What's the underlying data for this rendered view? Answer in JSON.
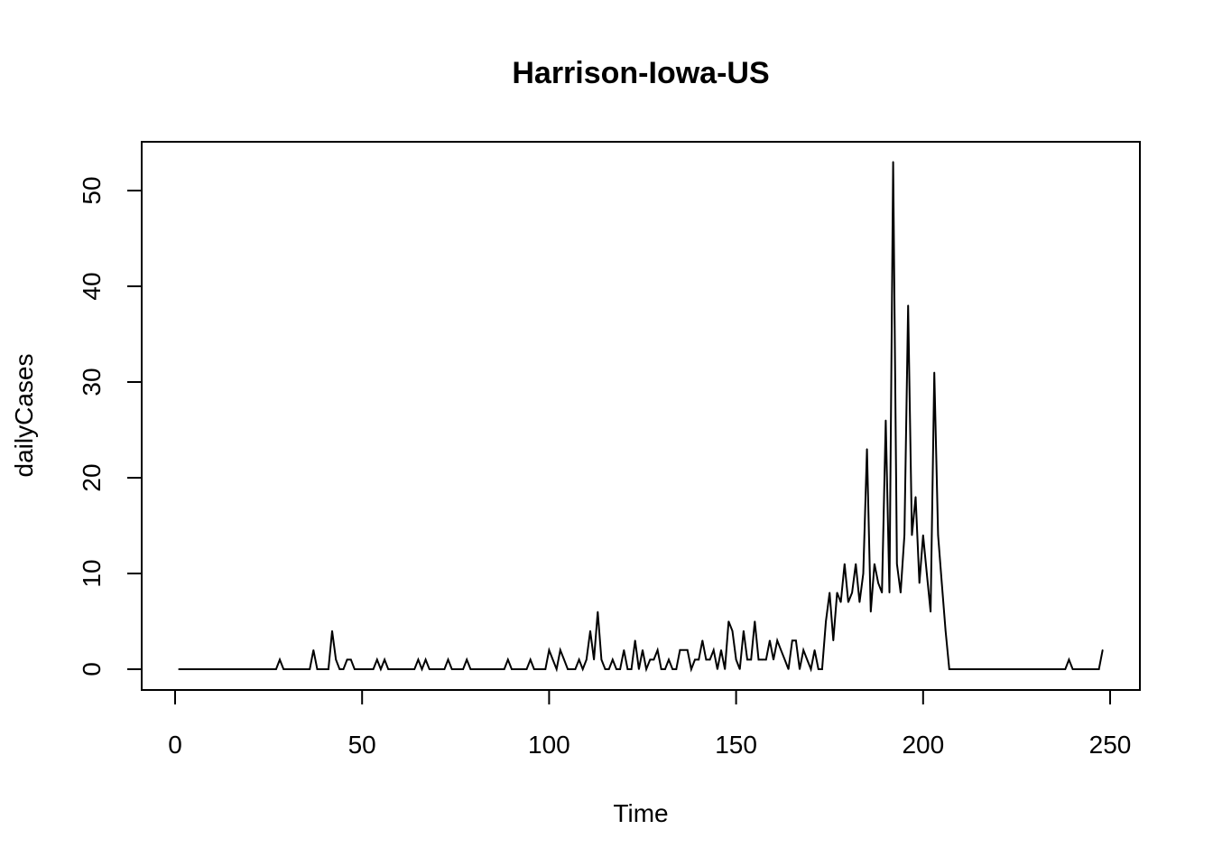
{
  "chart_data": {
    "type": "line",
    "title": "Harrison-Iowa-US",
    "xlabel": "Time",
    "ylabel": "dailyCases",
    "xlim": [
      1,
      248
    ],
    "ylim": [
      0,
      53
    ],
    "x_ticks": [
      0,
      50,
      100,
      150,
      200,
      250
    ],
    "y_ticks": [
      0,
      10,
      20,
      30,
      40,
      50
    ],
    "grid": false,
    "series": [
      {
        "color": "#000000",
        "x": [
          1,
          27,
          28,
          29,
          36,
          37,
          38,
          41,
          42,
          43,
          44,
          45,
          46,
          47,
          48,
          49,
          53,
          54,
          55,
          56,
          57,
          64,
          65,
          66,
          67,
          68,
          72,
          73,
          74,
          77,
          78,
          79,
          88,
          89,
          90,
          94,
          95,
          96,
          99,
          100,
          101,
          102,
          103,
          104,
          105,
          106,
          107,
          108,
          109,
          110,
          111,
          112,
          113,
          114,
          115,
          116,
          117,
          118,
          119,
          120,
          121,
          122,
          123,
          124,
          125,
          126,
          127,
          128,
          129,
          130,
          131,
          132,
          133,
          134,
          135,
          136,
          137,
          138,
          139,
          140,
          141,
          142,
          143,
          144,
          145,
          146,
          147,
          148,
          149,
          150,
          151,
          152,
          153,
          154,
          155,
          156,
          157,
          158,
          159,
          160,
          161,
          162,
          163,
          164,
          165,
          166,
          167,
          168,
          169,
          170,
          171,
          172,
          173,
          174,
          175,
          176,
          177,
          178,
          179,
          180,
          181,
          182,
          183,
          184,
          185,
          186,
          187,
          188,
          189,
          190,
          191,
          192,
          193,
          194,
          195,
          196,
          197,
          198,
          199,
          200,
          201,
          202,
          203,
          204,
          205,
          206,
          207,
          238,
          239,
          240,
          247,
          248
        ],
        "values": [
          0,
          0,
          1,
          0,
          0,
          2,
          0,
          0,
          4,
          1,
          0,
          0,
          1,
          1,
          0,
          0,
          0,
          1,
          0,
          1,
          0,
          0,
          1,
          0,
          1,
          0,
          0,
          1,
          0,
          0,
          1,
          0,
          0,
          1,
          0,
          0,
          1,
          0,
          0,
          2,
          1,
          0,
          2,
          1,
          0,
          0,
          0,
          1,
          0,
          1,
          4,
          1,
          6,
          1,
          0,
          0,
          1,
          0,
          0,
          2,
          0,
          0,
          3,
          0,
          2,
          0,
          1,
          1,
          2,
          0,
          0,
          1,
          0,
          0,
          2,
          2,
          2,
          0,
          1,
          1,
          3,
          1,
          1,
          2,
          0,
          2,
          0,
          5,
          4,
          1,
          0,
          4,
          1,
          1,
          5,
          1,
          1,
          1,
          3,
          1,
          3,
          2,
          1,
          0,
          3,
          3,
          0,
          2,
          1,
          0,
          2,
          0,
          0,
          5,
          8,
          3,
          8,
          7,
          11,
          7,
          8,
          11,
          7,
          10,
          23,
          6,
          11,
          9,
          8,
          26,
          8,
          53,
          11,
          8,
          14,
          38,
          14,
          18,
          9,
          14,
          10,
          6,
          31,
          14,
          9,
          4,
          0,
          0,
          1,
          0,
          0,
          2
        ]
      }
    ]
  }
}
